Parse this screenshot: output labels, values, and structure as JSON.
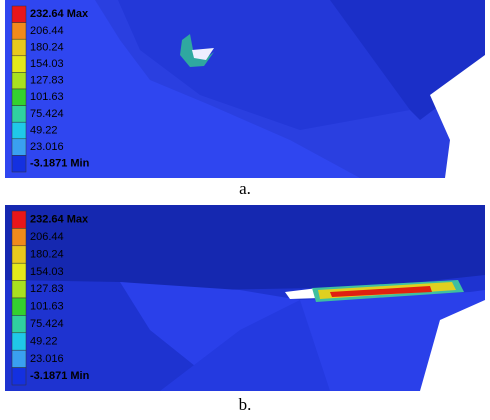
{
  "panels": [
    {
      "legend": [
        "232.64 Max",
        "206.44",
        "180.24",
        "154.03",
        "127.83",
        "101.63",
        "75.424",
        "49.22",
        "23.016",
        "-3.1871 Min"
      ],
      "caption": "a."
    },
    {
      "legend": [
        "232.64 Max",
        "206.44",
        "180.24",
        "154.03",
        "127.83",
        "101.63",
        "75.424",
        "49.22",
        "23.016",
        "-3.1871 Min"
      ],
      "caption": "b."
    }
  ]
}
